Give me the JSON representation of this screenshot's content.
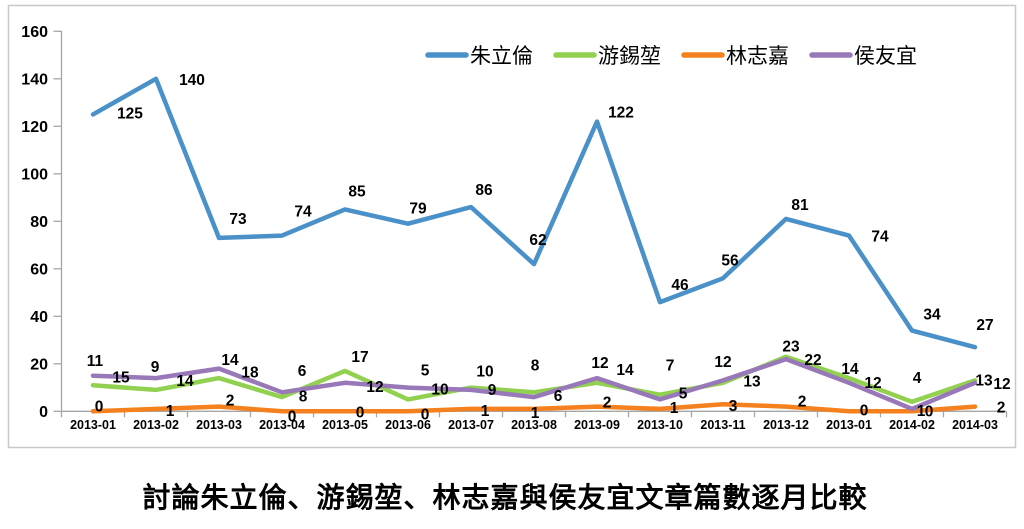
{
  "chart": {
    "title": "討論朱立倫、游錫堃、林志嘉與侯友宜文章篇數逐月比較"
  },
  "chart_data": {
    "type": "line",
    "title": "討論朱立倫、游錫堃、林志嘉與侯友宜文章篇數逐月比較",
    "categories": [
      "2013-01",
      "2013-02",
      "2013-03",
      "2013-04",
      "2013-05",
      "2013-06",
      "2013-07",
      "2013-08",
      "2013-09",
      "2013-10",
      "2013-11",
      "2013-12",
      "2013-01",
      "2014-02",
      "2014-03"
    ],
    "series": [
      {
        "name": "朱立倫",
        "slug": "zhu-li-lun",
        "color": "#4A90C9",
        "values": [
          125,
          140,
          73,
          74,
          85,
          79,
          86,
          62,
          122,
          46,
          56,
          81,
          74,
          34,
          27
        ],
        "label_offsets": [
          [
            37,
            -1
          ],
          [
            36,
            1
          ],
          [
            19,
            -19
          ],
          [
            21,
            -24
          ],
          [
            12,
            -18
          ],
          [
            10,
            -15
          ],
          [
            13,
            -17
          ],
          [
            4,
            -24
          ],
          [
            24,
            -9
          ],
          [
            20,
            -17
          ],
          [
            7,
            -18
          ],
          [
            14,
            -14
          ],
          [
            31,
            1
          ],
          [
            20,
            -16
          ],
          [
            10,
            -22
          ]
        ]
      },
      {
        "name": "游錫堃",
        "slug": "you-xi-kun",
        "color": "#92D050",
        "values": [
          11,
          9,
          14,
          6,
          17,
          5,
          10,
          8,
          12,
          7,
          12,
          23,
          14,
          4,
          13
        ],
        "label_offsets": [
          [
            2,
            -24
          ],
          [
            -1,
            -23
          ],
          [
            11,
            -18
          ],
          [
            20,
            -26
          ],
          [
            15,
            -14
          ],
          [
            17,
            -29
          ],
          [
            14,
            -16
          ],
          [
            1,
            -27
          ],
          [
            3,
            -20
          ],
          [
            10,
            -29
          ],
          [
            0,
            -21
          ],
          [
            5,
            -10
          ],
          [
            1,
            -9
          ],
          [
            5,
            -24
          ],
          [
            9,
            0
          ]
        ]
      },
      {
        "name": "林志嘉",
        "slug": "lin-zhi-jia",
        "color": "#F4811D",
        "values": [
          0,
          1,
          2,
          0,
          0,
          0,
          1,
          1,
          2,
          1,
          3,
          2,
          0,
          0,
          2
        ],
        "label_offsets": [
          [
            6,
            -5
          ],
          [
            14,
            2
          ],
          [
            11,
            -6
          ],
          [
            10,
            5
          ],
          [
            15,
            1
          ],
          [
            17,
            3
          ],
          [
            14,
            2
          ],
          [
            1,
            4
          ],
          [
            10,
            -4
          ],
          [
            14,
            -1
          ],
          [
            10,
            2
          ],
          [
            16,
            -5
          ],
          [
            15,
            -1
          ],
          [
            17,
            0
          ],
          [
            26,
            1
          ]
        ]
      },
      {
        "name": "侯友宜",
        "slug": "hou-you-yi",
        "color": "#9878B8",
        "values": [
          15,
          14,
          18,
          8,
          12,
          10,
          9,
          6,
          14,
          5,
          13,
          22,
          12,
          1,
          12
        ],
        "label_offsets": [
          [
            28,
            2
          ],
          [
            29,
            3
          ],
          [
            31,
            4
          ],
          [
            21,
            4
          ],
          [
            30,
            4
          ],
          [
            32,
            2
          ],
          [
            21,
            0
          ],
          [
            24,
            -1
          ],
          [
            28,
            -8
          ],
          [
            23,
            -6
          ],
          [
            29,
            1
          ],
          [
            27,
            1
          ],
          [
            24,
            0
          ],
          [
            9,
            2
          ],
          [
            27,
            1
          ]
        ]
      }
    ],
    "ylim": [
      0,
      160
    ],
    "ytick_step": 20,
    "yticks": [
      0,
      20,
      40,
      60,
      80,
      100,
      120,
      140,
      160
    ],
    "grid": false,
    "legend_position": "top",
    "axis_color": "#A6A6A6",
    "border_color": "#C8C8C8",
    "label_color": "#000000"
  }
}
